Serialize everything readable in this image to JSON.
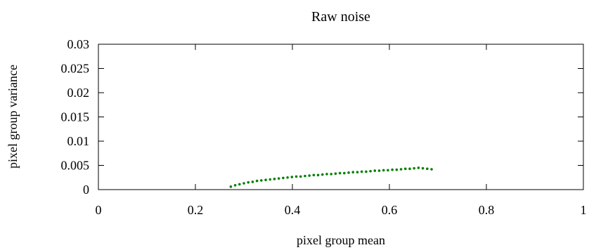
{
  "chart_data": {
    "type": "scatter",
    "title": "Raw noise",
    "xlabel": "pixel group mean",
    "ylabel": "pixel group variance",
    "xlim": [
      0,
      1
    ],
    "ylim": [
      0,
      0.03
    ],
    "x_ticks": [
      {
        "value": 0,
        "label": "0"
      },
      {
        "value": 0.2,
        "label": "0.2"
      },
      {
        "value": 0.4,
        "label": "0.4"
      },
      {
        "value": 0.6,
        "label": "0.6"
      },
      {
        "value": 0.8,
        "label": "0.8"
      },
      {
        "value": 1,
        "label": "1"
      }
    ],
    "y_ticks": [
      {
        "value": 0,
        "label": "0"
      },
      {
        "value": 0.005,
        "label": "0.005"
      },
      {
        "value": 0.01,
        "label": "0.01"
      },
      {
        "value": 0.015,
        "label": "0.015"
      },
      {
        "value": 0.02,
        "label": "0.02"
      },
      {
        "value": 0.025,
        "label": "0.025"
      },
      {
        "value": 0.03,
        "label": "0.03"
      }
    ],
    "grid": false,
    "series": [
      {
        "color": "#008000",
        "points": [
          [
            0.273,
            0.0006
          ],
          [
            0.282,
            0.0009
          ],
          [
            0.291,
            0.0011
          ],
          [
            0.3,
            0.0013
          ],
          [
            0.309,
            0.0015
          ],
          [
            0.318,
            0.0016
          ],
          [
            0.327,
            0.0018
          ],
          [
            0.336,
            0.0019
          ],
          [
            0.345,
            0.002
          ],
          [
            0.354,
            0.0021
          ],
          [
            0.363,
            0.0022
          ],
          [
            0.372,
            0.0023
          ],
          [
            0.381,
            0.0024
          ],
          [
            0.39,
            0.0025
          ],
          [
            0.399,
            0.0026
          ],
          [
            0.408,
            0.0027
          ],
          [
            0.417,
            0.0027
          ],
          [
            0.426,
            0.0028
          ],
          [
            0.435,
            0.0029
          ],
          [
            0.444,
            0.003
          ],
          [
            0.453,
            0.003
          ],
          [
            0.462,
            0.0031
          ],
          [
            0.471,
            0.0032
          ],
          [
            0.48,
            0.0032
          ],
          [
            0.489,
            0.0033
          ],
          [
            0.498,
            0.0034
          ],
          [
            0.507,
            0.0034
          ],
          [
            0.516,
            0.0035
          ],
          [
            0.525,
            0.0036
          ],
          [
            0.534,
            0.0036
          ],
          [
            0.543,
            0.0037
          ],
          [
            0.552,
            0.0037
          ],
          [
            0.561,
            0.0038
          ],
          [
            0.57,
            0.0039
          ],
          [
            0.579,
            0.0039
          ],
          [
            0.588,
            0.004
          ],
          [
            0.597,
            0.004
          ],
          [
            0.606,
            0.0041
          ],
          [
            0.615,
            0.0041
          ],
          [
            0.624,
            0.0042
          ],
          [
            0.633,
            0.0043
          ],
          [
            0.642,
            0.0043
          ],
          [
            0.651,
            0.0044
          ],
          [
            0.66,
            0.0045
          ],
          [
            0.669,
            0.0044
          ],
          [
            0.678,
            0.0043
          ],
          [
            0.687,
            0.0042
          ]
        ]
      }
    ]
  }
}
